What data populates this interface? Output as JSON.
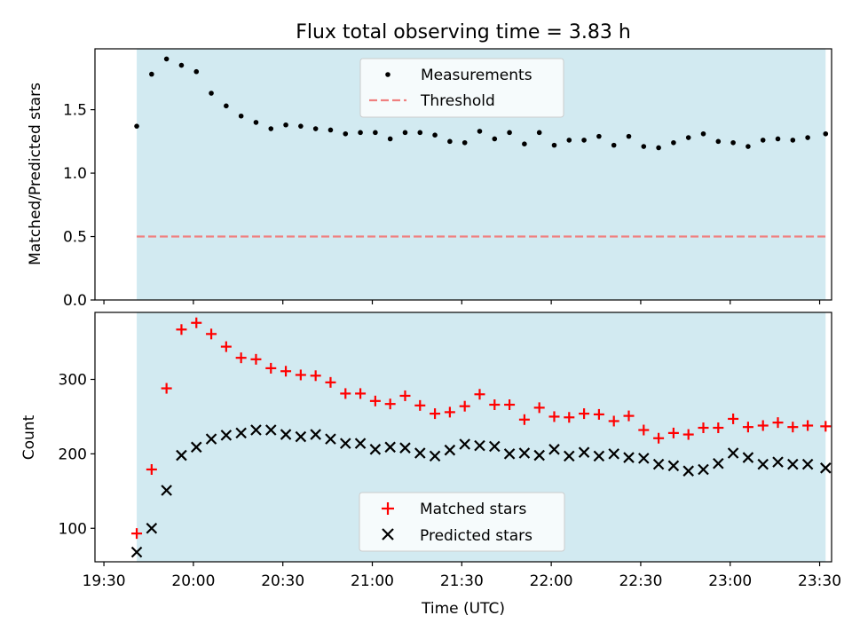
{
  "title": "Flux total observing time = 3.83 h",
  "colors": {
    "band": "#add8e6",
    "measurement": "#000000",
    "threshold": "#f08080",
    "matched": "#ff0000",
    "predicted": "#000000"
  },
  "chart_data": [
    {
      "type": "scatter",
      "panel": "top",
      "title": "Flux total observing time = 3.83 h",
      "xlabel": "",
      "ylabel": "Matched/Predicted stars",
      "xlim": [
        "19:27",
        "23:34"
      ],
      "ylim": [
        0,
        1.98
      ],
      "yticks": [
        "0.0",
        "0.5",
        "1.0",
        "1.5"
      ],
      "legend_position": "top-center",
      "shaded_span": [
        "19:41",
        "23:32"
      ],
      "threshold": {
        "name": "Threshold",
        "value": 0.5,
        "style": "dashed"
      },
      "series": [
        {
          "name": "Measurements",
          "x": [
            "19:41",
            "19:46",
            "19:51",
            "19:56",
            "20:01",
            "20:06",
            "20:11",
            "20:16",
            "20:21",
            "20:26",
            "20:31",
            "20:36",
            "20:41",
            "20:46",
            "20:51",
            "20:56",
            "21:01",
            "21:06",
            "21:11",
            "21:16",
            "21:21",
            "21:26",
            "21:31",
            "21:36",
            "21:41",
            "21:46",
            "21:51",
            "21:56",
            "22:01",
            "22:06",
            "22:11",
            "22:16",
            "22:21",
            "22:26",
            "22:31",
            "22:36",
            "22:41",
            "22:46",
            "22:51",
            "22:56",
            "23:01",
            "23:06",
            "23:11",
            "23:16",
            "23:21",
            "23:26",
            "23:32"
          ],
          "y": [
            1.37,
            1.78,
            1.9,
            1.85,
            1.8,
            1.63,
            1.53,
            1.45,
            1.4,
            1.35,
            1.38,
            1.37,
            1.35,
            1.34,
            1.31,
            1.32,
            1.32,
            1.27,
            1.32,
            1.32,
            1.3,
            1.25,
            1.24,
            1.33,
            1.27,
            1.32,
            1.23,
            1.32,
            1.22,
            1.26,
            1.26,
            1.29,
            1.22,
            1.29,
            1.21,
            1.2,
            1.24,
            1.28,
            1.31,
            1.25,
            1.24,
            1.21,
            1.26,
            1.27,
            1.26,
            1.28,
            1.31
          ]
        }
      ]
    },
    {
      "type": "scatter",
      "panel": "bottom",
      "xlabel": "Time (UTC)",
      "ylabel": "Count",
      "xlim": [
        "19:27",
        "23:34"
      ],
      "ylim": [
        55,
        390
      ],
      "xticks": [
        "19:30",
        "20:00",
        "20:30",
        "21:00",
        "21:30",
        "22:00",
        "22:30",
        "23:00",
        "23:30"
      ],
      "yticks": [
        "100",
        "200",
        "300"
      ],
      "legend_position": "bottom-center",
      "shaded_span": [
        "19:41",
        "23:32"
      ],
      "series": [
        {
          "name": "Matched stars",
          "marker": "+",
          "x": [
            "19:41",
            "19:46",
            "19:51",
            "19:56",
            "20:01",
            "20:06",
            "20:11",
            "20:16",
            "20:21",
            "20:26",
            "20:31",
            "20:36",
            "20:41",
            "20:46",
            "20:51",
            "20:56",
            "21:01",
            "21:06",
            "21:11",
            "21:16",
            "21:21",
            "21:26",
            "21:31",
            "21:36",
            "21:41",
            "21:46",
            "21:51",
            "21:56",
            "22:01",
            "22:06",
            "22:11",
            "22:16",
            "22:21",
            "22:26",
            "22:31",
            "22:36",
            "22:41",
            "22:46",
            "22:51",
            "22:56",
            "23:01",
            "23:06",
            "23:11",
            "23:16",
            "23:21",
            "23:26",
            "23:32"
          ],
          "y": [
            93,
            179,
            288,
            367,
            376,
            361,
            344,
            329,
            327,
            315,
            311,
            306,
            305,
            296,
            281,
            281,
            271,
            267,
            278,
            265,
            254,
            256,
            264,
            280,
            266,
            266,
            246,
            262,
            250,
            249,
            254,
            253,
            244,
            251,
            232,
            221,
            228,
            226,
            235,
            235,
            247,
            236,
            238,
            242,
            236,
            238,
            237
          ]
        },
        {
          "name": "Predicted stars",
          "marker": "x",
          "x": [
            "19:41",
            "19:46",
            "19:51",
            "19:56",
            "20:01",
            "20:06",
            "20:11",
            "20:16",
            "20:21",
            "20:26",
            "20:31",
            "20:36",
            "20:41",
            "20:46",
            "20:51",
            "20:56",
            "21:01",
            "21:06",
            "21:11",
            "21:16",
            "21:21",
            "21:26",
            "21:31",
            "21:36",
            "21:41",
            "21:46",
            "21:51",
            "21:56",
            "22:01",
            "22:06",
            "22:11",
            "22:16",
            "22:21",
            "22:26",
            "22:31",
            "22:36",
            "22:41",
            "22:46",
            "22:51",
            "22:56",
            "23:01",
            "23:06",
            "23:11",
            "23:16",
            "23:21",
            "23:26",
            "23:32"
          ],
          "y": [
            68,
            100,
            151,
            198,
            209,
            220,
            225,
            228,
            232,
            232,
            226,
            223,
            226,
            220,
            214,
            214,
            206,
            209,
            208,
            201,
            197,
            205,
            213,
            211,
            210,
            200,
            201,
            198,
            206,
            197,
            202,
            197,
            200,
            195,
            194,
            186,
            184,
            177,
            179,
            187,
            201,
            195,
            186,
            189,
            186,
            186,
            181
          ]
        }
      ]
    }
  ]
}
